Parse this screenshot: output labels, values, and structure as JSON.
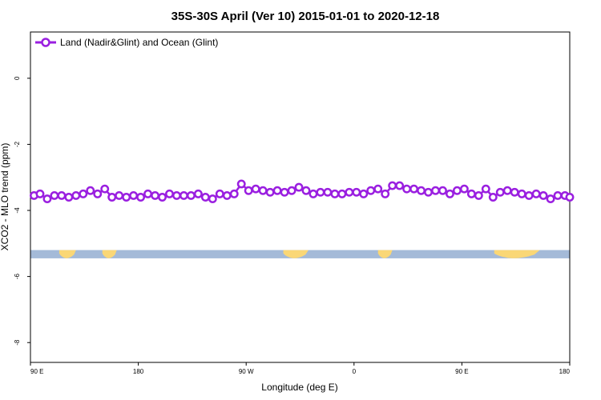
{
  "chart_data": {
    "type": "line",
    "title": "35S-30S April (Ver 10)   2015-01-01 to 2020-12-18",
    "xlabel": "Longitude (deg E)",
    "ylabel": "XCO2 - MLO trend (ppm)",
    "x_ticks": [
      {
        "value": 90,
        "label": "90 E"
      },
      {
        "value": 180,
        "label": "180"
      },
      {
        "value": 270,
        "label": "90 W"
      },
      {
        "value": 360,
        "label": "0"
      },
      {
        "value": 450,
        "label": "90 E"
      },
      {
        "value": 540,
        "label": "180"
      }
    ],
    "y_ticks": [
      0,
      -2,
      -4,
      -6,
      -8
    ],
    "xlim": [
      90,
      540
    ],
    "ylim": [
      -8.6,
      1.4
    ],
    "grid": false,
    "legend_position": "top-left",
    "colors": {
      "series": "#9a1fe0",
      "ocean": "#a4bad8",
      "land": "#fad776"
    },
    "series": [
      {
        "name": "Land (Nadir&Glint) and Ocean (Glint)",
        "x": [
          93,
          98,
          104,
          110,
          116,
          122,
          128,
          134,
          140,
          146,
          152,
          158,
          164,
          170,
          176,
          182,
          188,
          194,
          200,
          206,
          212,
          218,
          224,
          230,
          236,
          242,
          248,
          254,
          260,
          266,
          272,
          278,
          284,
          290,
          296,
          302,
          308,
          314,
          320,
          326,
          332,
          338,
          344,
          350,
          356,
          362,
          368,
          374,
          380,
          386,
          392,
          398,
          404,
          410,
          416,
          422,
          428,
          434,
          440,
          446,
          452,
          458,
          464,
          470,
          476,
          482,
          488,
          494,
          500,
          506,
          512,
          518,
          524,
          530,
          536,
          540
        ],
        "values": [
          -3.55,
          -3.5,
          -3.65,
          -3.55,
          -3.55,
          -3.6,
          -3.55,
          -3.5,
          -3.4,
          -3.5,
          -3.35,
          -3.6,
          -3.55,
          -3.6,
          -3.55,
          -3.6,
          -3.5,
          -3.55,
          -3.6,
          -3.5,
          -3.55,
          -3.55,
          -3.55,
          -3.5,
          -3.6,
          -3.65,
          -3.5,
          -3.55,
          -3.5,
          -3.2,
          -3.4,
          -3.35,
          -3.4,
          -3.45,
          -3.4,
          -3.45,
          -3.4,
          -3.3,
          -3.4,
          -3.5,
          -3.45,
          -3.45,
          -3.5,
          -3.5,
          -3.45,
          -3.45,
          -3.5,
          -3.4,
          -3.35,
          -3.5,
          -3.25,
          -3.25,
          -3.35,
          -3.35,
          -3.4,
          -3.45,
          -3.4,
          -3.4,
          -3.5,
          -3.4,
          -3.35,
          -3.5,
          -3.55,
          -3.35,
          -3.6,
          -3.45,
          -3.4,
          -3.45,
          -3.5,
          -3.55,
          -3.5,
          -3.55,
          -3.65,
          -3.55,
          -3.55,
          -3.6
        ]
      }
    ],
    "map_strip": {
      "y_top": -5.2,
      "y_bottom": -5.45,
      "land_segments": [
        [
          114,
          128
        ],
        [
          150,
          162
        ],
        [
          301,
          322
        ],
        [
          380,
          392
        ],
        [
          477,
          515
        ]
      ]
    }
  }
}
